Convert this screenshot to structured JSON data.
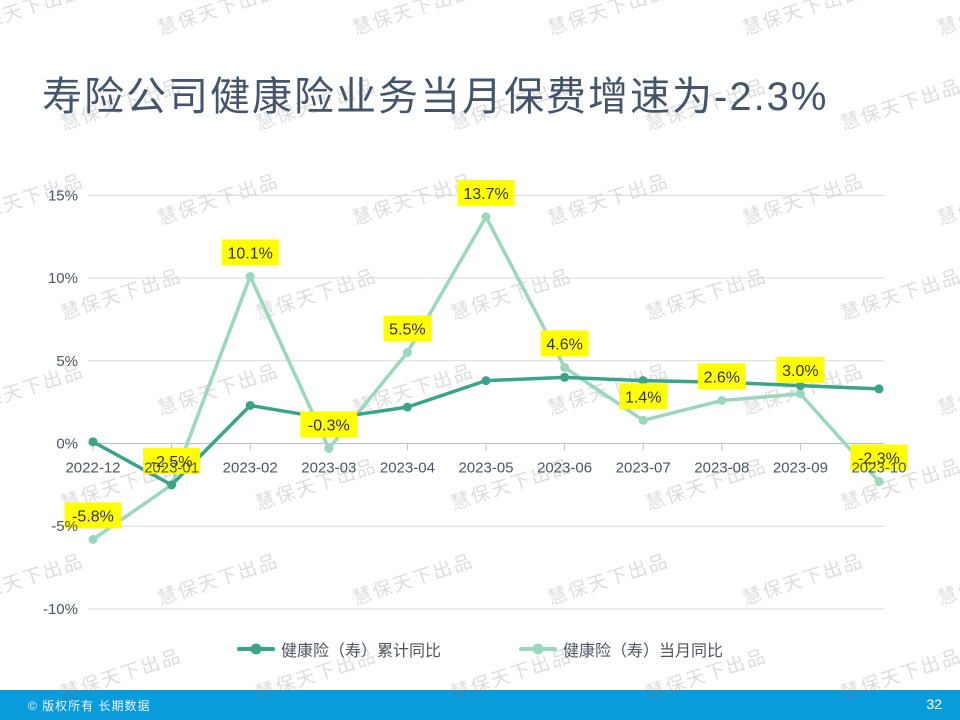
{
  "page": {
    "title": "寿险公司健康险业务当月保费增速为-2.3%",
    "watermark_text": "慧保天下出品",
    "footer_text": "© 版权所有 长期数据",
    "page_number": "32"
  },
  "colors": {
    "title_text": "#44546A",
    "footer_bg": "#0A9BDC",
    "gridline": "#D9D9D9",
    "axis_line": "#BFBFBF",
    "axis_text": "#4D5560",
    "label_bg": "#FFFF00",
    "label_text": "#333333"
  },
  "chart_data": {
    "type": "line",
    "title": "",
    "xlabel": "",
    "ylabel": "",
    "grid": "horizontal",
    "legend_position": "bottom",
    "ylim": [
      -10,
      15
    ],
    "y_ticks": [
      {
        "v": 15,
        "label": "15%"
      },
      {
        "v": 10,
        "label": "10%"
      },
      {
        "v": 5,
        "label": "5%"
      },
      {
        "v": 0,
        "label": "0%"
      },
      {
        "v": -5,
        "label": "-5%"
      },
      {
        "v": -10,
        "label": "-10%"
      }
    ],
    "categories": [
      "2022-12",
      "2023-01",
      "2023-02",
      "2023-03",
      "2023-04",
      "2023-05",
      "2023-06",
      "2023-07",
      "2023-08",
      "2023-09",
      "2023-10"
    ],
    "series": [
      {
        "name": "健康险（寿）累计同比",
        "color": "#3BA389",
        "labeled": false,
        "values": [
          0.1,
          -2.5,
          2.3,
          1.5,
          2.2,
          3.8,
          4.0,
          3.8,
          3.7,
          3.5,
          3.3
        ]
      },
      {
        "name": "健康险（寿）当月同比",
        "color": "#9AD7BC",
        "labeled": true,
        "values": [
          -5.8,
          -2.5,
          10.1,
          -0.3,
          5.5,
          13.7,
          4.6,
          1.4,
          2.6,
          3.0,
          -2.3
        ],
        "point_labels": [
          "-5.8%",
          "-2.5%",
          "10.1%",
          "-0.3%",
          "5.5%",
          "13.7%",
          "4.6%",
          "1.4%",
          "2.6%",
          "3.0%",
          "-2.3%"
        ]
      }
    ]
  }
}
